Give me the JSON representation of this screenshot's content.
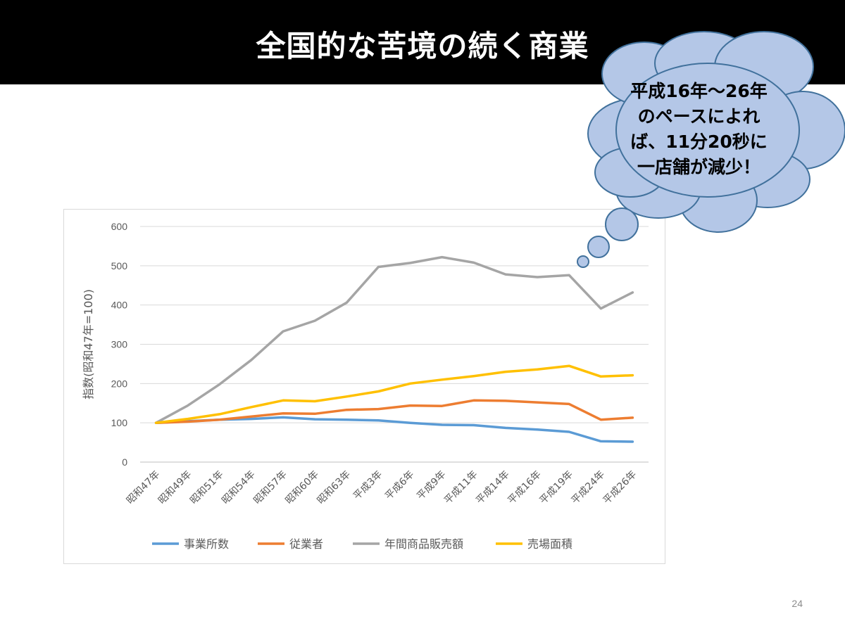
{
  "slide": {
    "title": "全国的な苦境の続く商業",
    "page_number": "24"
  },
  "callout": {
    "lines": [
      "平成16年～26年",
      "のペースによれ",
      "ば、11分20秒に",
      "一店舗が減少！"
    ]
  },
  "colors": {
    "title_bg": "#000000",
    "cloud_fill": "#b4c7e7",
    "cloud_stroke": "#41719c"
  },
  "chart_data": {
    "type": "line",
    "categories": [
      "昭和47年",
      "昭和49年",
      "昭和51年",
      "昭和54年",
      "昭和57年",
      "昭和60年",
      "昭和63年",
      "平成3年",
      "平成6年",
      "平成9年",
      "平成11年",
      "平成14年",
      "平成16年",
      "平成19年",
      "平成24年",
      "平成26年"
    ],
    "ylabel": "指数(昭和47年=100)",
    "ylim": [
      0,
      600
    ],
    "yticks": [
      0,
      100,
      200,
      300,
      400,
      500,
      600
    ],
    "grid": true,
    "legend_position": "bottom",
    "series": [
      {
        "name": "事業所数",
        "color": "#5b9bd5",
        "values": [
          100,
          104,
          108,
          110,
          114,
          109,
          108,
          106,
          100,
          95,
          94,
          87,
          83,
          77,
          53,
          52
        ]
      },
      {
        "name": "従業者",
        "color": "#ed7d31",
        "values": [
          100,
          103,
          108,
          116,
          124,
          123,
          133,
          135,
          144,
          143,
          157,
          156,
          152,
          148,
          108,
          113
        ]
      },
      {
        "name": "年間商品販売額",
        "color": "#a5a5a5",
        "values": [
          100,
          144,
          198,
          260,
          333,
          360,
          406,
          497,
          507,
          522,
          508,
          478,
          471,
          476,
          391,
          432
        ]
      },
      {
        "name": "売場面積",
        "color": "#ffc000",
        "values": [
          100,
          110,
          122,
          140,
          157,
          155,
          167,
          180,
          200,
          210,
          219,
          230,
          236,
          245,
          218,
          221
        ]
      }
    ]
  }
}
